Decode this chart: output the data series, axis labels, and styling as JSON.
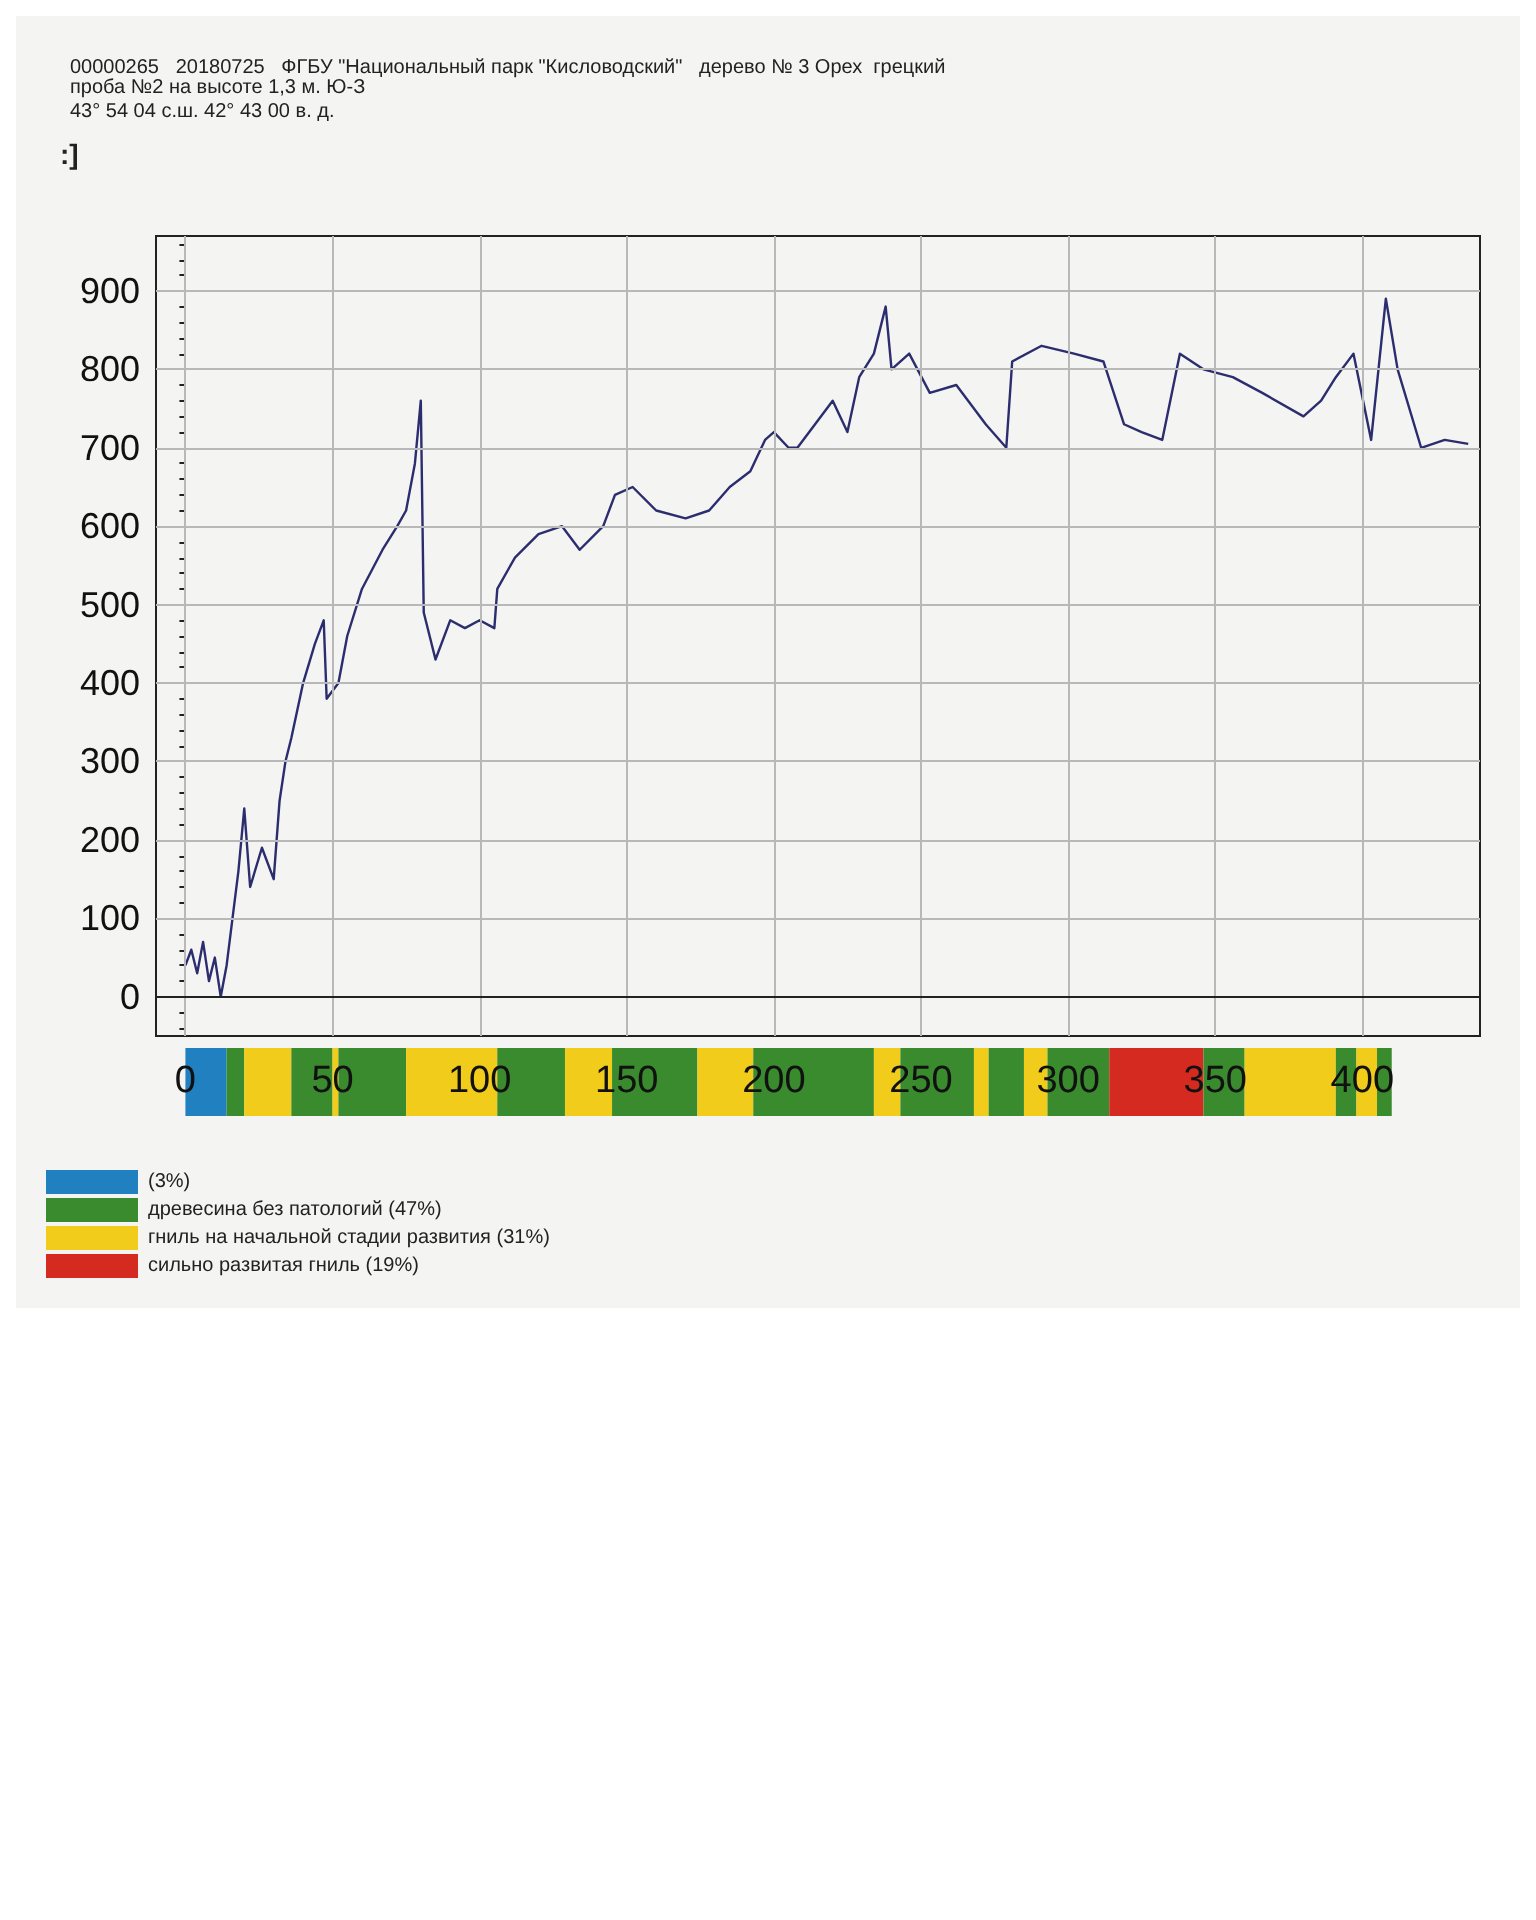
{
  "chart_data": [
    {
      "type": "line",
      "title": "00000265   20180725   ФГБУ \"Национальный парк \"Кисловодский\"   дерево № 3 Орех  грецкий проба №2 на высоте 1,3 м. Ю-З",
      "subtitle": "43° 54 04 с.ш. 42° 43 00 в. д.",
      "annotations": [
        ":]"
      ],
      "x": [
        0,
        2,
        4,
        6,
        8,
        10,
        12,
        14,
        16,
        18,
        20,
        22,
        26,
        30,
        32,
        34,
        36,
        40,
        44,
        47,
        48,
        52,
        55,
        60,
        67,
        72,
        75,
        78,
        80,
        81,
        85,
        90,
        95,
        100,
        105,
        106,
        112,
        120,
        128,
        134,
        142,
        146,
        152,
        160,
        170,
        178,
        185,
        192,
        197,
        200,
        205,
        208,
        214,
        220,
        225,
        229,
        234,
        238,
        240,
        246,
        253,
        262,
        272,
        279,
        281,
        291,
        302,
        312,
        319,
        325,
        332,
        338,
        346,
        356,
        366,
        380,
        386,
        391,
        397,
        403,
        408,
        412,
        420,
        428,
        436
      ],
      "series": [
        {
          "color": "#2b2d6e",
          "values": [
            40,
            60,
            30,
            70,
            20,
            50,
            0,
            40,
            100,
            160,
            240,
            140,
            190,
            150,
            250,
            300,
            330,
            400,
            450,
            480,
            380,
            400,
            460,
            520,
            570,
            600,
            620,
            680,
            760,
            490,
            430,
            480,
            470,
            480,
            470,
            520,
            560,
            590,
            600,
            570,
            600,
            640,
            650,
            620,
            610,
            620,
            650,
            670,
            710,
            720,
            700,
            700,
            730,
            760,
            720,
            790,
            820,
            880,
            800,
            820,
            770,
            780,
            730,
            700,
            810,
            830,
            820,
            810,
            730,
            720,
            710,
            820,
            800,
            790,
            770,
            740,
            760,
            790,
            820,
            710,
            890,
            800,
            700,
            710,
            705
          ]
        }
      ],
      "xlim": [
        -10,
        440
      ],
      "xticks": [
        0,
        50,
        100,
        150,
        200,
        250,
        300,
        350,
        400
      ],
      "ylim": [
        -50,
        970
      ],
      "yticks": [
        0,
        100,
        200,
        300,
        400,
        500,
        600,
        700,
        800,
        900
      ],
      "grid": true,
      "tick_labels": "y"
    },
    {
      "type": "bar",
      "orientation": "horizontal",
      "stacked": true,
      "categories": [
        null
      ],
      "xlim": [
        -10,
        440
      ],
      "xticks": [
        0,
        50,
        100,
        150,
        200,
        250,
        300,
        350,
        400
      ],
      "tick_labels": "x",
      "legend": "bottom left",
      "series": [
        {
          "name": "(3%)",
          "color": "#2080c0",
          "values": [
            14
          ]
        },
        {
          "name": "древесина без патологий (47%)",
          "color": "#3a8a2e",
          "values": [
            6
          ]
        },
        {
          "name": "гниль на начальной стадии развития (31%)",
          "color": "#f2cc1a",
          "values": [
            16
          ]
        },
        {
          "color": "#3a8a2e",
          "values": [
            14
          ]
        },
        {
          "color": "#f2cc1a",
          "values": [
            2
          ]
        },
        {
          "color": "#3a8a2e",
          "values": [
            23
          ]
        },
        {
          "color": "#f2cc1a",
          "values": [
            31
          ]
        },
        {
          "color": "#3a8a2e",
          "values": [
            23
          ]
        },
        {
          "color": "#f2cc1a",
          "values": [
            16
          ]
        },
        {
          "color": "#3a8a2e",
          "values": [
            29
          ]
        },
        {
          "color": "#f2cc1a",
          "values": [
            19
          ]
        },
        {
          "color": "#3a8a2e",
          "values": [
            41
          ]
        },
        {
          "color": "#f2cc1a",
          "values": [
            9
          ]
        },
        {
          "color": "#3a8a2e",
          "values": [
            25
          ]
        },
        {
          "color": "#f2cc1a",
          "values": [
            5
          ]
        },
        {
          "color": "#3a8a2e",
          "values": [
            12
          ]
        },
        {
          "color": "#f2cc1a",
          "values": [
            8
          ]
        },
        {
          "color": "#3a8a2e",
          "values": [
            21
          ]
        },
        {
          "name": "сильно развитая гниль (19%)",
          "color": "#d42a20",
          "values": [
            32
          ]
        },
        {
          "color": "#3a8a2e",
          "values": [
            14
          ]
        },
        {
          "color": "#f2cc1a",
          "values": [
            31
          ]
        },
        {
          "color": "#3a8a2e",
          "values": [
            7
          ]
        },
        {
          "color": "#f2cc1a",
          "values": [
            7
          ]
        },
        {
          "color": "#3a8a2e",
          "values": [
            5
          ]
        }
      ]
    }
  ]
}
